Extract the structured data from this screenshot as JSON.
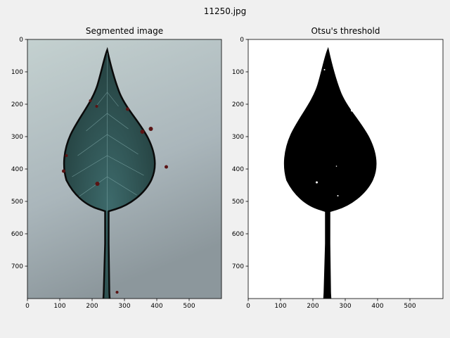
{
  "figure": {
    "title": "11250.jpg"
  },
  "panels": [
    {
      "title": "Segmented image",
      "x_ticks": [
        "0",
        "100",
        "200",
        "300",
        "400",
        "500"
      ],
      "y_ticks": [
        "0",
        "100",
        "200",
        "300",
        "400",
        "500",
        "600",
        "700"
      ]
    },
    {
      "title": "Otsu's threshold",
      "x_ticks": [
        "0",
        "100",
        "200",
        "300",
        "400",
        "500"
      ],
      "y_ticks": [
        "0",
        "100",
        "200",
        "300",
        "400",
        "500",
        "600",
        "700"
      ]
    }
  ],
  "colors": {
    "figure_bg": "#f0f0f0",
    "leaf_fill": "#2f5455",
    "leaf_outline": "#0a0a0a",
    "background_light": "#c2cfce",
    "background_dark": "#8a959b",
    "threshold_fg": "#000000",
    "threshold_bg": "#ffffff",
    "spot_color": "#5a1414"
  }
}
